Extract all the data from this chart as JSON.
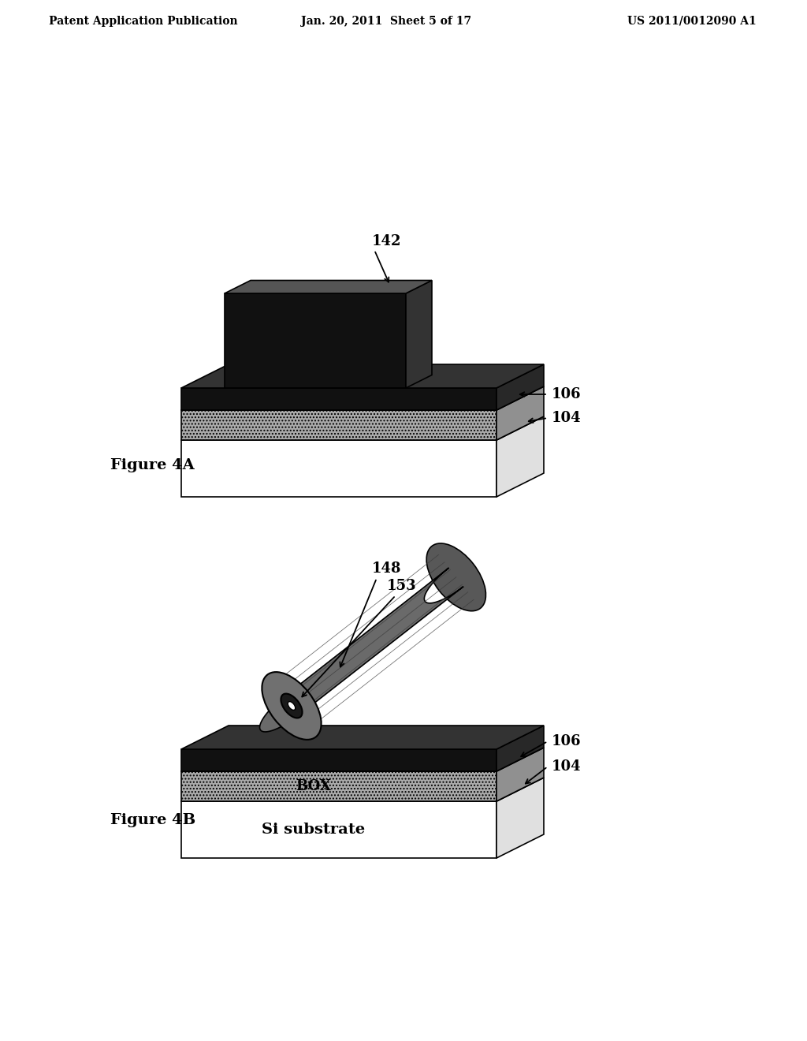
{
  "header_left": "Patent Application Publication",
  "header_mid": "Jan. 20, 2011  Sheet 5 of 17",
  "header_right": "US 2011/0012090 A1",
  "fig4a_label": "Figure 4A",
  "fig4b_label": "Figure 4B",
  "label_142": "142",
  "label_106a": "106",
  "label_104a": "104",
  "label_148": "148",
  "label_153": "153",
  "label_106b": "106",
  "label_104b": "104",
  "label_box": "BOX",
  "label_si": "Si substrate",
  "bg_color": "#ffffff"
}
